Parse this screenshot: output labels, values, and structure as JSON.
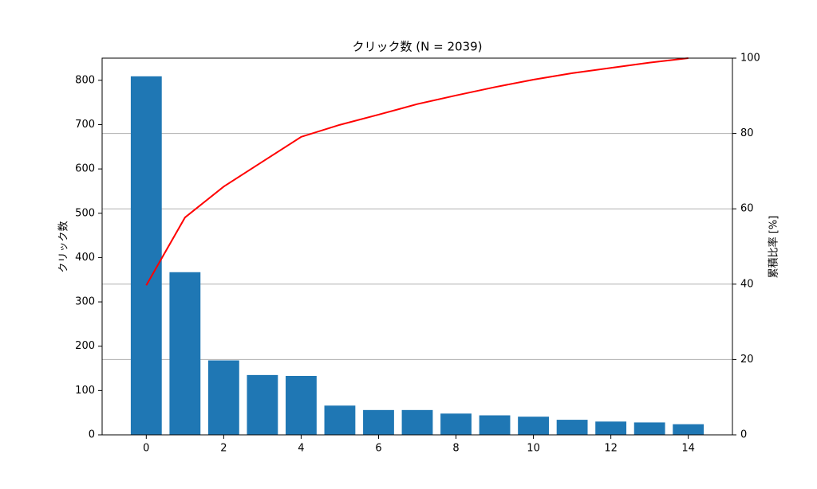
{
  "chart_data": {
    "type": "bar",
    "title": "クリック数 (N = 2039)",
    "ylabel": "クリック数",
    "y2label": "累積比率 [%]",
    "x": [
      0,
      1,
      2,
      3,
      4,
      5,
      6,
      7,
      8,
      9,
      10,
      11,
      12,
      13,
      14
    ],
    "xlim": [
      -1.14,
      15.14
    ],
    "xticks": [
      0,
      2,
      4,
      6,
      8,
      10,
      12,
      14
    ],
    "ylim": [
      0,
      850
    ],
    "yticks": [
      0,
      100,
      200,
      300,
      400,
      500,
      600,
      700,
      800
    ],
    "y2lim": [
      0,
      100
    ],
    "y2ticks": [
      0,
      20,
      40,
      60,
      80,
      100
    ],
    "grid": "y2",
    "series": [
      {
        "type": "bar",
        "color": "#1f77b4",
        "values": [
          809,
          367,
          168,
          135,
          133,
          66,
          56,
          56,
          48,
          44,
          41,
          34,
          30,
          28,
          24
        ]
      },
      {
        "type": "line",
        "color": "#ff0000",
        "axis": "y2",
        "values": [
          39.7,
          57.7,
          65.9,
          72.5,
          79.1,
          82.3,
          85.0,
          87.8,
          90.1,
          92.3,
          94.3,
          96.0,
          97.4,
          98.8,
          100.0
        ]
      }
    ]
  }
}
